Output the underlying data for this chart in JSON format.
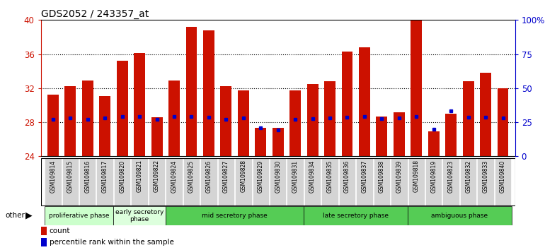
{
  "title": "GDS2052 / 243357_at",
  "samples": [
    "GSM109814",
    "GSM109815",
    "GSM109816",
    "GSM109817",
    "GSM109820",
    "GSM109821",
    "GSM109822",
    "GSM109824",
    "GSM109825",
    "GSM109826",
    "GSM109827",
    "GSM109828",
    "GSM109829",
    "GSM109830",
    "GSM109831",
    "GSM109834",
    "GSM109835",
    "GSM109836",
    "GSM109837",
    "GSM109838",
    "GSM109839",
    "GSM109818",
    "GSM109819",
    "GSM109823",
    "GSM109832",
    "GSM109833",
    "GSM109840"
  ],
  "bar_tops": [
    31.2,
    32.2,
    32.9,
    31.1,
    35.2,
    36.1,
    28.6,
    32.9,
    39.2,
    38.8,
    32.2,
    31.7,
    27.3,
    27.3,
    31.7,
    32.5,
    32.8,
    36.3,
    36.8,
    28.7,
    29.2,
    40.0,
    26.9,
    29.0,
    32.8,
    33.8,
    32.0
  ],
  "percentile_values": [
    28.3,
    28.5,
    28.3,
    28.5,
    28.7,
    28.7,
    28.3,
    28.7,
    28.7,
    28.6,
    28.3,
    28.5,
    27.3,
    27.1,
    28.3,
    28.4,
    28.5,
    28.6,
    28.7,
    28.4,
    28.5,
    28.7,
    27.2,
    29.3,
    28.6,
    28.6,
    28.5
  ],
  "ymin": 24,
  "ymax": 40,
  "yticks_left": [
    24,
    28,
    32,
    36,
    40
  ],
  "yticks_right_vals": [
    0,
    25,
    50,
    75,
    100
  ],
  "yticks_right_labels": [
    "0",
    "25",
    "50",
    "75",
    "100%"
  ],
  "bar_color": "#CC1100",
  "dot_color": "#0000CC",
  "phase_defs": [
    {
      "label": "proliferative phase",
      "start": 0,
      "end": 4,
      "color": "#ccffcc"
    },
    {
      "label": "early secretory\nphase",
      "start": 4,
      "end": 7,
      "color": "#ddffdd"
    },
    {
      "label": "mid secretory phase",
      "start": 7,
      "end": 15,
      "color": "#55cc55"
    },
    {
      "label": "late secretory phase",
      "start": 15,
      "end": 21,
      "color": "#55cc55"
    },
    {
      "label": "ambiguous phase",
      "start": 21,
      "end": 27,
      "color": "#55cc55"
    }
  ],
  "other_label": "other",
  "legend_count_label": "count",
  "legend_pct_label": "percentile rank within the sample"
}
